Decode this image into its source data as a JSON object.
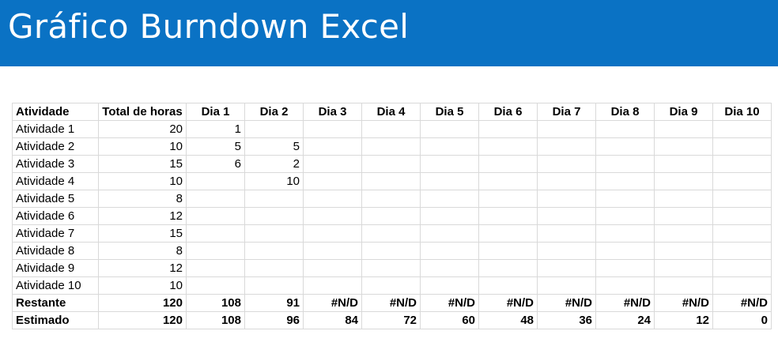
{
  "banner": {
    "title": "Gráfico Burndown Excel"
  },
  "colors": {
    "banner_bg": "#0a72c4",
    "grid_line": "#d9d9d9"
  },
  "table": {
    "headers": [
      "Atividade",
      "Total de horas",
      "Dia 1",
      "Dia 2",
      "Dia 3",
      "Dia 4",
      "Dia 5",
      "Dia 6",
      "Dia 7",
      "Dia 8",
      "Dia 9",
      "Dia 10"
    ],
    "rows": [
      [
        "Atividade 1",
        "20",
        "1",
        "",
        "",
        "",
        "",
        "",
        "",
        "",
        "",
        ""
      ],
      [
        "Atividade 2",
        "10",
        "5",
        "5",
        "",
        "",
        "",
        "",
        "",
        "",
        "",
        ""
      ],
      [
        "Atividade 3",
        "15",
        "6",
        "2",
        "",
        "",
        "",
        "",
        "",
        "",
        "",
        ""
      ],
      [
        "Atividade 4",
        "10",
        "",
        "10",
        "",
        "",
        "",
        "",
        "",
        "",
        "",
        ""
      ],
      [
        "Atividade 5",
        "8",
        "",
        "",
        "",
        "",
        "",
        "",
        "",
        "",
        "",
        ""
      ],
      [
        "Atividade 6",
        "12",
        "",
        "",
        "",
        "",
        "",
        "",
        "",
        "",
        "",
        ""
      ],
      [
        "Atividade 7",
        "15",
        "",
        "",
        "",
        "",
        "",
        "",
        "",
        "",
        "",
        ""
      ],
      [
        "Atividade 8",
        "8",
        "",
        "",
        "",
        "",
        "",
        "",
        "",
        "",
        "",
        ""
      ],
      [
        "Atividade 9",
        "12",
        "",
        "",
        "",
        "",
        "",
        "",
        "",
        "",
        "",
        ""
      ],
      [
        "Atividade 10",
        "10",
        "",
        "",
        "",
        "",
        "",
        "",
        "",
        "",
        "",
        ""
      ]
    ],
    "summary_rows": [
      [
        "Restante",
        "120",
        "108",
        "91",
        "#N/D",
        "#N/D",
        "#N/D",
        "#N/D",
        "#N/D",
        "#N/D",
        "#N/D",
        "#N/D"
      ],
      [
        "Estimado",
        "120",
        "108",
        "96",
        "84",
        "72",
        "60",
        "48",
        "36",
        "24",
        "12",
        "0"
      ]
    ]
  }
}
